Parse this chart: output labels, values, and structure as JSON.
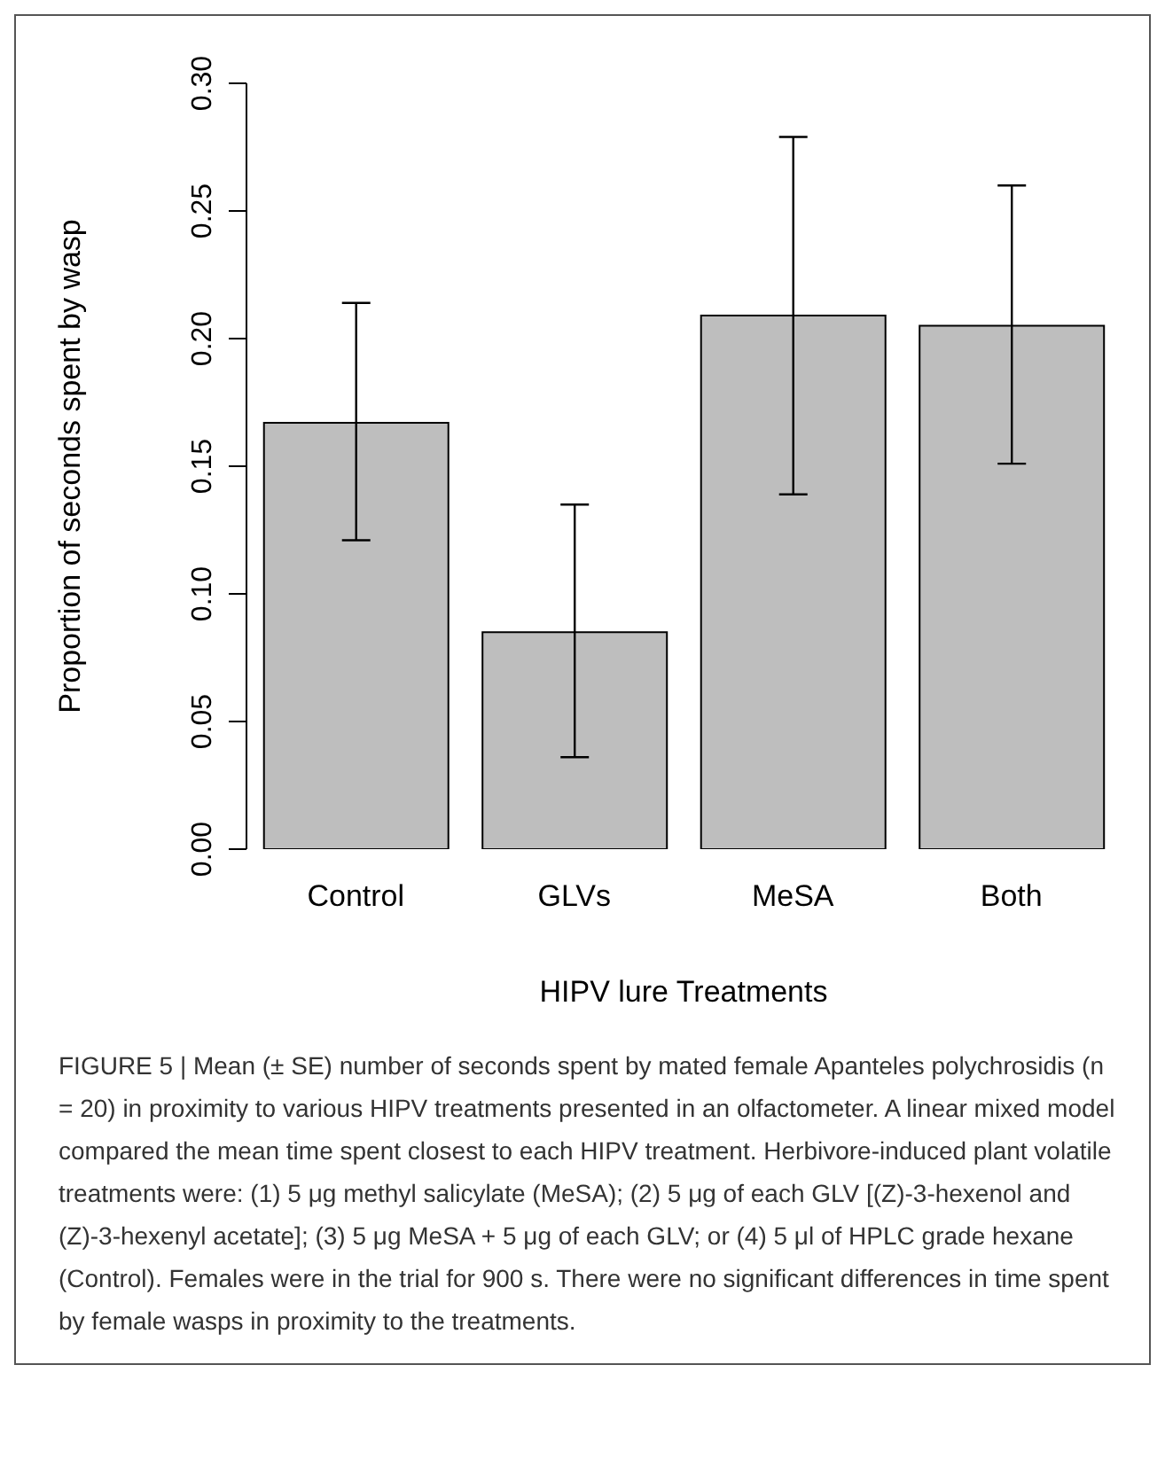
{
  "chart_data": {
    "type": "bar",
    "xlabel": "HIPV lure Treatments",
    "ylabel": "Proportion of seconds spent by wasp",
    "categories": [
      "Control",
      "GLVs",
      "MeSA",
      "Both"
    ],
    "values": [
      0.167,
      0.085,
      0.209,
      0.205
    ],
    "errors": [
      [
        0.121,
        0.214
      ],
      [
        0.036,
        0.135
      ],
      [
        0.139,
        0.279
      ],
      [
        0.151,
        0.26
      ]
    ],
    "color": "#bebebe",
    "ylim": [
      0,
      0.3
    ],
    "yticks": [
      {
        "value": 0,
        "label": "0.00"
      },
      {
        "value": 0.05,
        "label": "0.05"
      },
      {
        "value": 0.1,
        "label": "0.10"
      },
      {
        "value": 0.15,
        "label": "0.15"
      },
      {
        "value": 0.2,
        "label": "0.20"
      },
      {
        "value": 0.25,
        "label": "0.25"
      },
      {
        "value": 0.3,
        "label": "0.30"
      }
    ],
    "grid": false,
    "legend": false,
    "annotations": [
      "FIGURE 5 | Mean (± SE) number of seconds spent by mated female Apanteles polychrosidis (n = 20) in proximity to various HIPV treatments presented in an olfactometer. A linear mixed model compared the mean time spent closest to each HIPV treatment. Herbivore-induced plant volatile treatments were: (1) 5 μg methyl salicylate (MeSA); (2) 5 μg of each GLV [(Z)-3-hexenol and (Z)-3-hexenyl acetate]; (3) 5 μg MeSA + 5 μg of each GLV; or (4) 5 μl of HPLC grade hexane (Control). Females were in the trial for 900 s. There were no significant differences in time spent by female wasps in proximity to the treatments."
    ]
  }
}
